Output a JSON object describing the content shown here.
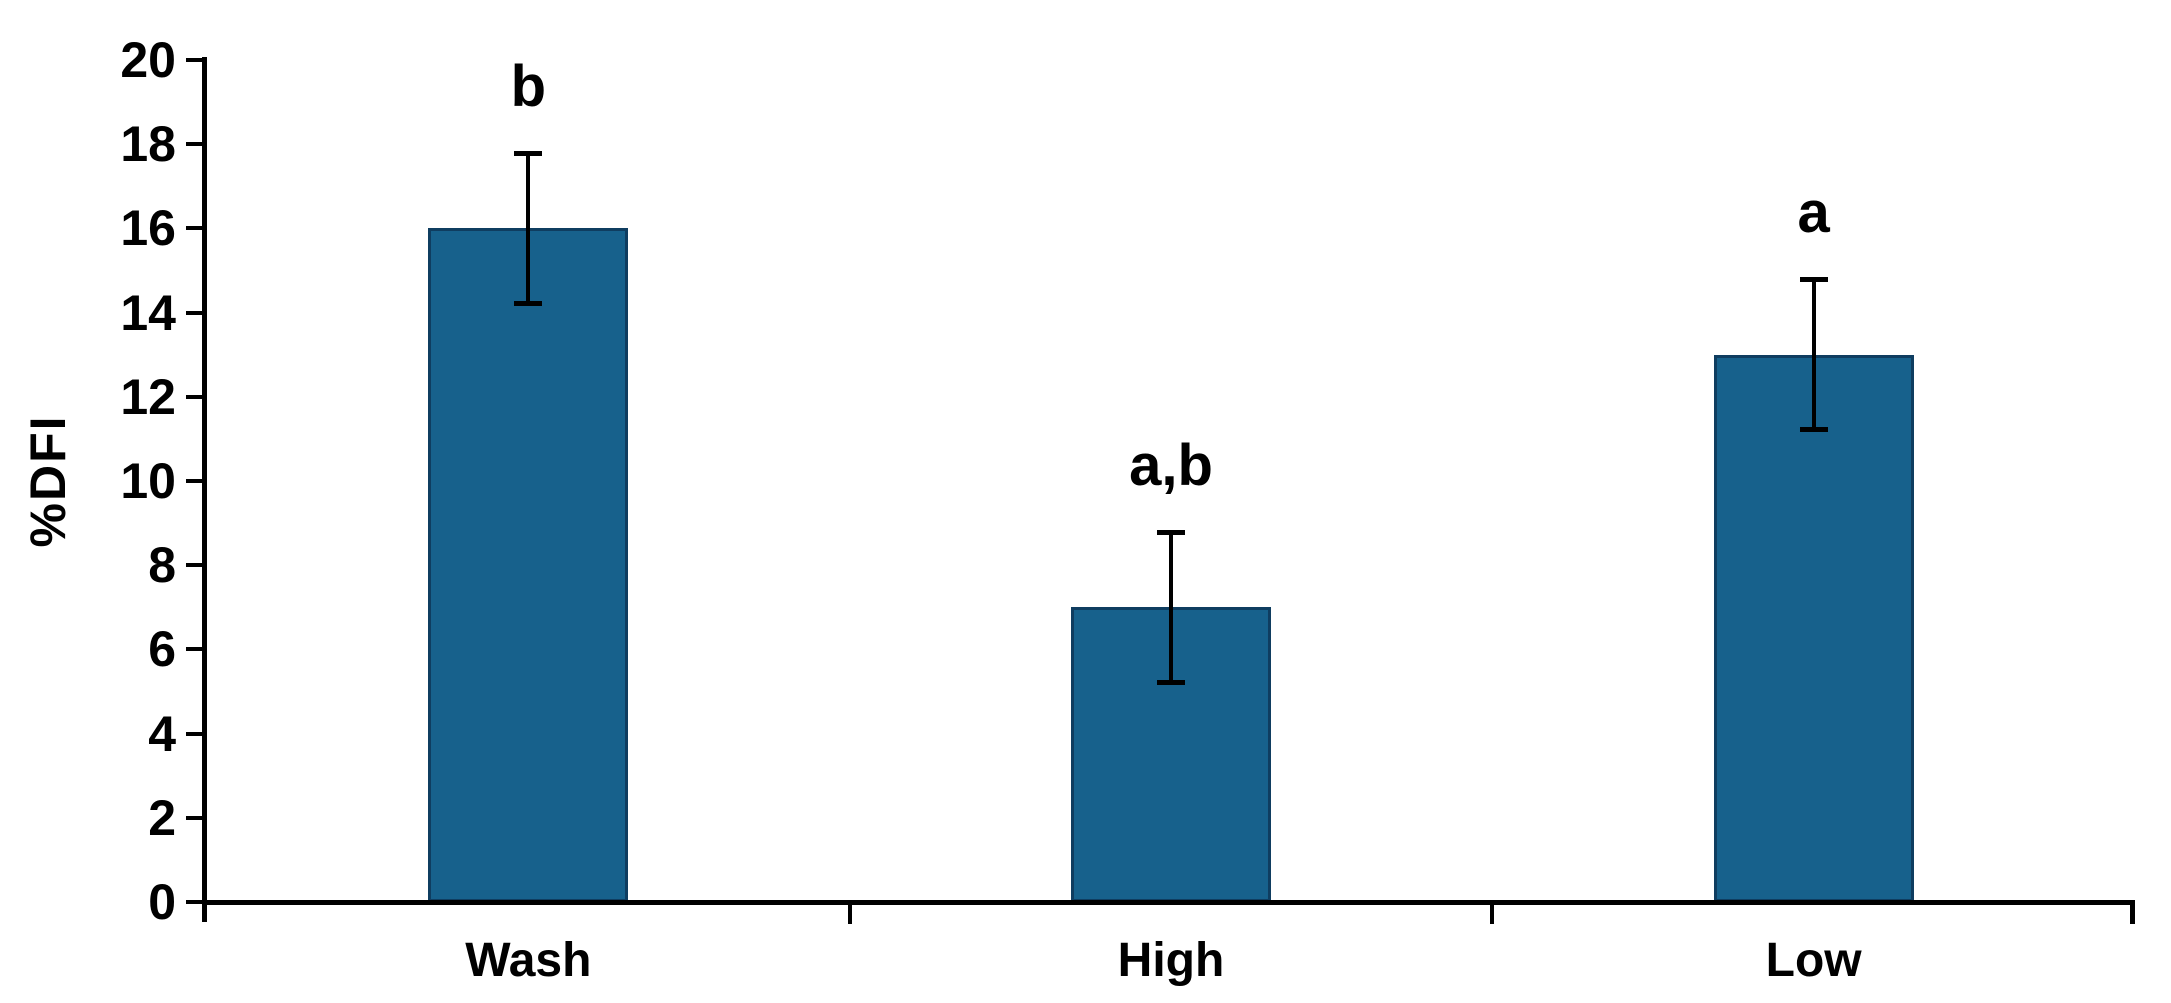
{
  "chart_data": {
    "type": "bar",
    "title": "",
    "xlabel": "",
    "ylabel": "%DFI",
    "categories": [
      "Wash",
      "High",
      "Low"
    ],
    "values": [
      16,
      7,
      13
    ],
    "errors": [
      1.8,
      1.8,
      1.8
    ],
    "significance_letters": [
      "b",
      "a,b",
      "a"
    ],
    "ylim": [
      0,
      20
    ],
    "yticks": [
      0,
      2,
      4,
      6,
      8,
      10,
      12,
      14,
      16,
      18,
      20
    ],
    "grid": false,
    "legend": false,
    "bar_color": "#17618c",
    "bar_border_color": "#0f3d60",
    "axis_color": "#000000",
    "text_color": "#000000",
    "background_color": "#ffffff"
  }
}
